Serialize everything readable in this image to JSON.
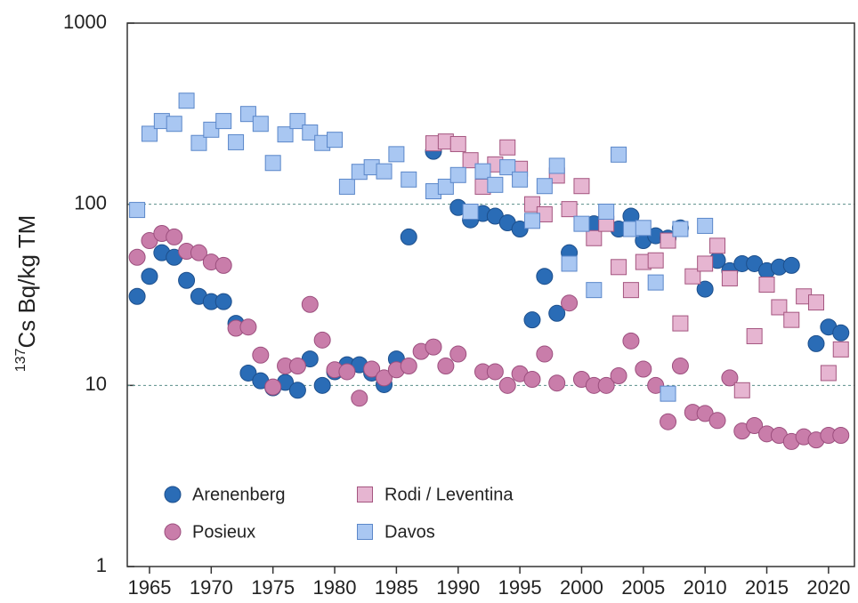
{
  "chart_data": {
    "type": "scatter",
    "y_label": {
      "superscript": "137",
      "text": "Cs Bq/kg TM"
    },
    "xlim": [
      1963.2,
      2022.1
    ],
    "xticks": [
      1965,
      1970,
      1975,
      1980,
      1985,
      1990,
      1995,
      2000,
      2005,
      2010,
      2015,
      2020
    ],
    "ylim": [
      1,
      1000
    ],
    "yticks": [
      1,
      10,
      100,
      1000
    ],
    "y_log": true,
    "grid": true,
    "legend": "lower-left",
    "series": [
      {
        "name": "Arenenberg",
        "marker": "circle",
        "color": "#2a6cb6",
        "edge": "#1d4f8c",
        "x": [
          1964,
          1965,
          1966,
          1967,
          1968,
          1969,
          1970,
          1971,
          1972,
          1973,
          1974,
          1975,
          1976,
          1977,
          1978,
          1979,
          1980,
          1981,
          1982,
          1983,
          1984,
          1985,
          1986,
          1988,
          1990,
          1991,
          1992,
          1993,
          1994,
          1995,
          1996,
          1997,
          1998,
          1999,
          2001,
          2003,
          2004,
          2005,
          2006,
          2007,
          2008,
          2010,
          2011,
          2012,
          2013,
          2014,
          2015,
          2016,
          2017,
          2019,
          2020,
          2021
        ],
        "values": [
          31,
          40,
          54,
          51,
          38,
          31,
          29,
          29,
          22,
          11.7,
          10.6,
          9.7,
          10.4,
          9.4,
          14,
          10,
          11.9,
          13,
          13,
          11.7,
          10.1,
          14,
          66,
          196,
          96,
          82,
          89,
          86,
          79,
          73,
          23,
          40,
          25,
          54,
          78,
          73,
          86,
          63,
          67,
          65,
          74,
          34,
          49,
          43,
          47,
          47,
          43,
          45,
          46,
          17,
          21,
          19.5
        ]
      },
      {
        "name": "Posieux",
        "marker": "circle",
        "color": "#c97daa",
        "edge": "#9c4f7e",
        "x": [
          1964,
          1965,
          1966,
          1967,
          1968,
          1969,
          1970,
          1971,
          1972,
          1973,
          1974,
          1975,
          1976,
          1977,
          1978,
          1979,
          1980,
          1981,
          1982,
          1983,
          1984,
          1985,
          1986,
          1987,
          1988,
          1989,
          1990,
          1992,
          1993,
          1994,
          1995,
          1996,
          1997,
          1998,
          1999,
          2000,
          2001,
          2002,
          2003,
          2004,
          2005,
          2006,
          2007,
          2008,
          2009,
          2010,
          2011,
          2012,
          2013,
          2014,
          2015,
          2016,
          2017,
          2018,
          2019,
          2020,
          2021
        ],
        "values": [
          51,
          63,
          69,
          66,
          55,
          54,
          48,
          46,
          20.7,
          21,
          14.7,
          9.8,
          12.8,
          12.8,
          28,
          17.8,
          12.2,
          11.9,
          8.5,
          12.3,
          11,
          12.2,
          12.8,
          15.4,
          16.3,
          12.8,
          14.9,
          11.9,
          11.9,
          10,
          11.6,
          10.8,
          14.9,
          10.3,
          28.5,
          10.8,
          10,
          10,
          11.3,
          17.6,
          12.3,
          10,
          6.3,
          12.8,
          7.1,
          7,
          6.4,
          11,
          5.6,
          6,
          5.4,
          5.3,
          4.9,
          5.2,
          5,
          5.3,
          5.3
        ]
      },
      {
        "name": "Rodi / Leventina",
        "marker": "square",
        "color": "#e6b5d1",
        "edge": "#a4557f",
        "x": [
          1988,
          1989,
          1990,
          1991,
          1992,
          1993,
          1994,
          1995,
          1996,
          1997,
          1998,
          1999,
          2000,
          2001,
          2002,
          2003,
          2004,
          2005,
          2006,
          2007,
          2008,
          2009,
          2010,
          2011,
          2012,
          2013,
          2014,
          2015,
          2016,
          2017,
          2018,
          2019,
          2020,
          2021
        ],
        "values": [
          217,
          222,
          215,
          175,
          125,
          166,
          206,
          157,
          100,
          88,
          144,
          94,
          126,
          65,
          78,
          45,
          33.6,
          48,
          49,
          63,
          22,
          40,
          47,
          59,
          39,
          9.4,
          18.7,
          36,
          27,
          23,
          31,
          28.7,
          11.7,
          15.8
        ]
      },
      {
        "name": "Davos",
        "marker": "square",
        "color": "#a9c7f2",
        "edge": "#5b87c9",
        "x": [
          1964,
          1965,
          1966,
          1967,
          1968,
          1969,
          1970,
          1971,
          1972,
          1973,
          1974,
          1975,
          1976,
          1977,
          1978,
          1979,
          1980,
          1981,
          1982,
          1983,
          1984,
          1985,
          1986,
          1988,
          1989,
          1990,
          1991,
          1992,
          1993,
          1994,
          1995,
          1996,
          1997,
          1998,
          1999,
          2000,
          2001,
          2002,
          2003,
          2004,
          2005,
          2006,
          2007,
          2008,
          2010
        ],
        "values": [
          93,
          245,
          288,
          278,
          373,
          218,
          258,
          288,
          220,
          315,
          278,
          169,
          243,
          288,
          249,
          218,
          227,
          125,
          151,
          160,
          152,
          189,
          137,
          118,
          125,
          145,
          91,
          152,
          128,
          160,
          137,
          81,
          126,
          163,
          47,
          78,
          33.6,
          91,
          188,
          73,
          74,
          37,
          9,
          73,
          76
        ]
      }
    ]
  }
}
